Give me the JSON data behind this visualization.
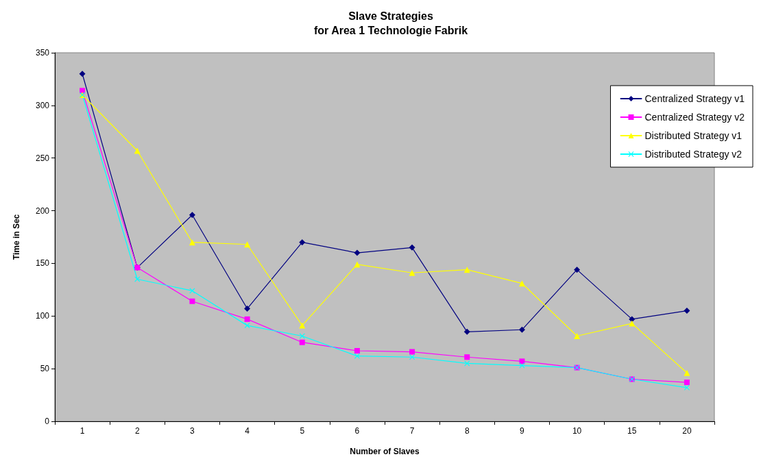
{
  "chart_data": {
    "type": "line",
    "title": "Slave Strategies\nfor Area 1 Technologie Fabrik",
    "xlabel": "Number of Slaves",
    "ylabel": "Time in Sec",
    "categories": [
      "1",
      "2",
      "3",
      "4",
      "5",
      "6",
      "7",
      "8",
      "9",
      "10",
      "15",
      "20"
    ],
    "series": [
      {
        "name": "Centralized Strategy v1",
        "color": "#000080",
        "marker": "diamond",
        "values": [
          330,
          146,
          196,
          107,
          170,
          160,
          165,
          85,
          87,
          144,
          97,
          105
        ]
      },
      {
        "name": "Centralized Strategy v2",
        "color": "#ff00ff",
        "marker": "square",
        "values": [
          314,
          146,
          114,
          97,
          75,
          67,
          66,
          61,
          57,
          51,
          40,
          37
        ]
      },
      {
        "name": "Distributed Strategy v1",
        "color": "#ffff00",
        "marker": "triangle",
        "values": [
          310,
          257,
          170,
          168,
          91,
          149,
          141,
          144,
          131,
          81,
          93,
          46
        ]
      },
      {
        "name": "Distributed Strategy v2",
        "color": "#00ffff",
        "marker": "cross",
        "values": [
          310,
          135,
          124,
          91,
          81,
          62,
          61,
          55,
          53,
          51,
          40,
          32
        ]
      }
    ],
    "ylim": [
      0,
      350
    ],
    "yticks": [
      0,
      50,
      100,
      150,
      200,
      250,
      300,
      350
    ],
    "grid": false,
    "legend": "top right",
    "line_style": "solid"
  }
}
